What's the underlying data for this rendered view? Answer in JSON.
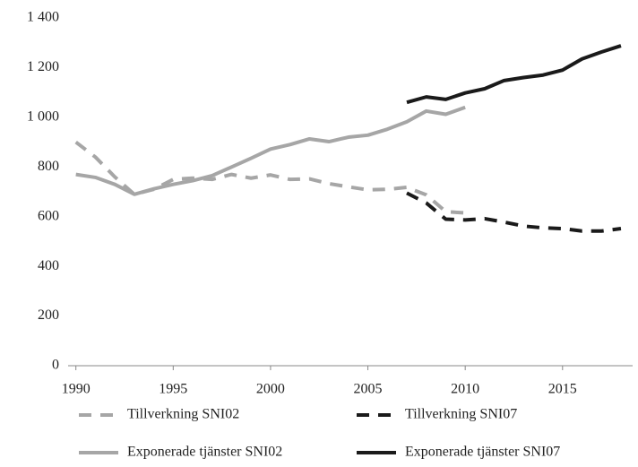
{
  "chart_data": {
    "type": "line",
    "x": [
      1990,
      1991,
      1992,
      1993,
      1994,
      1995,
      1996,
      1997,
      1998,
      1999,
      2000,
      2001,
      2002,
      2003,
      2004,
      2005,
      2006,
      2007,
      2008,
      2009,
      2010,
      2011,
      2012,
      2013,
      2014,
      2015,
      2016,
      2017,
      2018
    ],
    "series": [
      {
        "name": "Tillverkning SNI02",
        "color": "#a6a6a6",
        "dash": true,
        "values": [
          900,
          840,
          760,
          690,
          710,
          750,
          755,
          750,
          770,
          755,
          768,
          750,
          752,
          733,
          720,
          708,
          710,
          718,
          688,
          620,
          615,
          null,
          null,
          null,
          null,
          null,
          null,
          null,
          null
        ]
      },
      {
        "name": "Tillverkning SNI07",
        "color": "#1a1a1a",
        "dash": true,
        "values": [
          null,
          null,
          null,
          null,
          null,
          null,
          null,
          null,
          null,
          null,
          null,
          null,
          null,
          null,
          null,
          null,
          null,
          695,
          655,
          590,
          587,
          592,
          578,
          562,
          555,
          552,
          542,
          542,
          552
        ]
      },
      {
        "name": "Exponerade tjänster SNI02",
        "color": "#a6a6a6",
        "dash": false,
        "values": [
          770,
          758,
          730,
          690,
          712,
          730,
          745,
          765,
          800,
          835,
          872,
          890,
          913,
          902,
          920,
          928,
          952,
          982,
          1025,
          1012,
          1040,
          null,
          null,
          null,
          null,
          null,
          null,
          null,
          null
        ]
      },
      {
        "name": "Exponerade tjänster SNI07",
        "color": "#1a1a1a",
        "dash": false,
        "values": [
          null,
          null,
          null,
          null,
          null,
          null,
          null,
          null,
          null,
          null,
          null,
          null,
          null,
          null,
          null,
          null,
          null,
          1060,
          1082,
          1072,
          1098,
          1115,
          1148,
          1160,
          1170,
          1190,
          1235,
          1263,
          1288
        ]
      }
    ],
    "xlim": [
      1989.6,
      2018.6
    ],
    "xticks": [
      1990,
      1995,
      2000,
      2005,
      2010,
      2015
    ],
    "ylim": [
      0,
      1400
    ],
    "yticks": [
      0,
      200,
      400,
      600,
      800,
      {
        "value": 1000,
        "label": "1 000"
      },
      {
        "value": 1200,
        "label": "1 200"
      },
      {
        "value": 1400,
        "label": "1 400"
      }
    ],
    "grid": false
  }
}
